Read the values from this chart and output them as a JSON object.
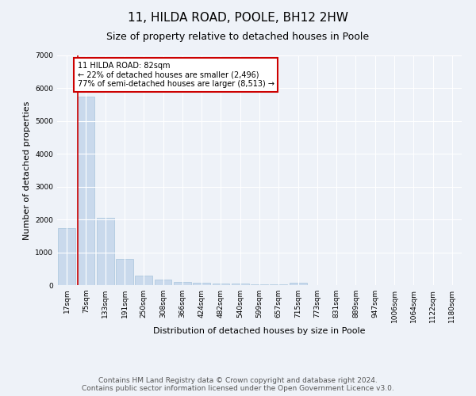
{
  "title": "11, HILDA ROAD, POOLE, BH12 2HW",
  "subtitle": "Size of property relative to detached houses in Poole",
  "xlabel": "Distribution of detached houses by size in Poole",
  "ylabel": "Number of detached properties",
  "categories": [
    "17sqm",
    "75sqm",
    "133sqm",
    "191sqm",
    "250sqm",
    "308sqm",
    "366sqm",
    "424sqm",
    "482sqm",
    "540sqm",
    "599sqm",
    "657sqm",
    "715sqm",
    "773sqm",
    "831sqm",
    "889sqm",
    "947sqm",
    "1006sqm",
    "1064sqm",
    "1122sqm",
    "1180sqm"
  ],
  "values": [
    1750,
    5750,
    2050,
    800,
    300,
    175,
    100,
    75,
    50,
    40,
    30,
    25,
    75,
    0,
    0,
    0,
    0,
    0,
    0,
    0,
    0
  ],
  "bar_color": "#c9d9ec",
  "bar_edge_color": "#a8c4dc",
  "property_line_color": "#cc0000",
  "annotation_text": "11 HILDA ROAD: 82sqm\n← 22% of detached houses are smaller (2,496)\n77% of semi-detached houses are larger (8,513) →",
  "annotation_box_color": "#ffffff",
  "annotation_box_edge_color": "#cc0000",
  "ylim": [
    0,
    7000
  ],
  "yticks": [
    0,
    1000,
    2000,
    3000,
    4000,
    5000,
    6000,
    7000
  ],
  "footer": "Contains HM Land Registry data © Crown copyright and database right 2024.\nContains public sector information licensed under the Open Government Licence v3.0.",
  "background_color": "#eef2f8",
  "grid_color": "#ffffff",
  "title_fontsize": 11,
  "subtitle_fontsize": 9,
  "axis_label_fontsize": 8,
  "tick_fontsize": 6.5,
  "footer_fontsize": 6.5
}
